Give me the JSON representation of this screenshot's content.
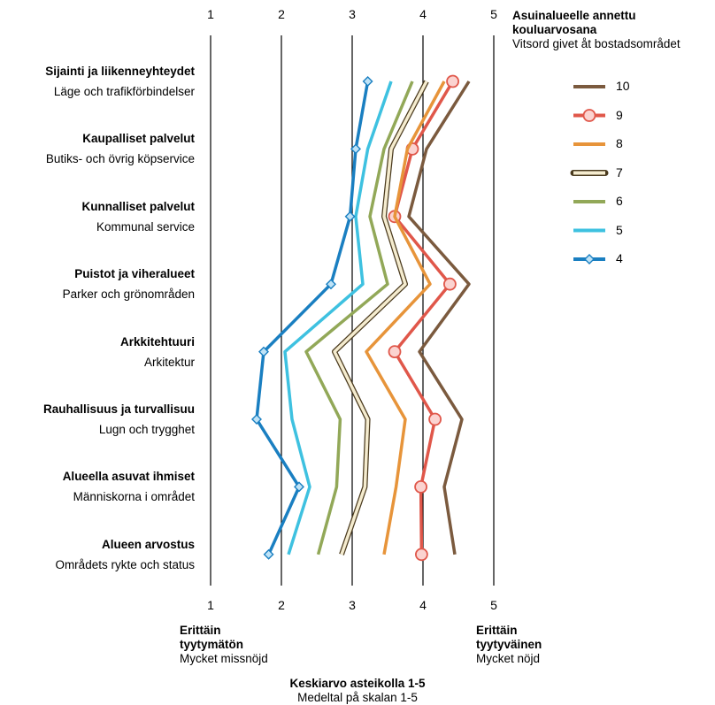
{
  "chart_data": {
    "type": "line",
    "orientation": "horizontal-values",
    "xlim": [
      1,
      5
    ],
    "x_ticks": [
      "1",
      "2",
      "3",
      "4",
      "5"
    ],
    "categories": [
      {
        "fi": "Sijainti ja liikenneyhteydet",
        "sv": "Läge och trafikförbindelser"
      },
      {
        "fi": "Kaupalliset palvelut",
        "sv": "Butiks- och övrig köpservice"
      },
      {
        "fi": "Kunnalliset palvelut",
        "sv": "Kommunal service"
      },
      {
        "fi": "Puistot ja viheralueet",
        "sv": "Parker och grönområden"
      },
      {
        "fi": "Arkkitehtuuri",
        "sv": "Arkitektur"
      },
      {
        "fi": "Rauhallisuus ja turvallisuu",
        "sv": "Lugn och trygghet"
      },
      {
        "fi": "Alueella asuvat ihmiset",
        "sv": "Människorna i området"
      },
      {
        "fi": "Alueen arvostus",
        "sv": "Områdets rykte och status"
      }
    ],
    "series": [
      {
        "name": "10",
        "color": "#7b5a3e",
        "style": "solid",
        "values": [
          4.65,
          4.05,
          3.8,
          4.65,
          3.95,
          4.55,
          4.3,
          4.45
        ]
      },
      {
        "name": "9",
        "color": "#e0574a",
        "style": "circle",
        "values": [
          4.42,
          3.85,
          3.6,
          4.38,
          3.6,
          4.17,
          3.97,
          3.98
        ]
      },
      {
        "name": "8",
        "color": "#e7943a",
        "style": "solid",
        "values": [
          4.3,
          3.78,
          3.6,
          4.1,
          3.2,
          3.75,
          3.62,
          3.45
        ]
      },
      {
        "name": "7",
        "color": "#f5eccf",
        "style": "outline",
        "values": [
          4.05,
          3.55,
          3.45,
          3.75,
          2.75,
          3.22,
          3.18,
          2.85
        ]
      },
      {
        "name": "6",
        "color": "#92a858",
        "style": "solid",
        "values": [
          3.85,
          3.45,
          3.25,
          3.5,
          2.35,
          2.83,
          2.78,
          2.52
        ]
      },
      {
        "name": "5",
        "color": "#3ec1e0",
        "style": "solid",
        "values": [
          3.55,
          3.22,
          3.05,
          3.15,
          2.05,
          2.15,
          2.4,
          2.1
        ]
      },
      {
        "name": "4",
        "color": "#1a7fc1",
        "style": "diamond",
        "values": [
          3.22,
          3.05,
          2.97,
          2.7,
          1.75,
          1.65,
          2.25,
          1.82
        ]
      }
    ],
    "legend": {
      "title_fi": "Asuinalueelle annettu kouluarvosana",
      "title_sv": "Vitsord givet åt bostadsområdet",
      "position": "top-right"
    },
    "x_axis_left_fi": "Erittäin tyytymätön",
    "x_axis_left_sv": "Mycket missnöjd",
    "x_axis_right_fi": "Erittäin tyytyväinen",
    "x_axis_right_sv": "Mycket nöjd",
    "xlabel_fi": "Keskiarvo asteikolla 1-5",
    "xlabel_sv": "Medeltal på skalan 1-5",
    "grid": "vertical"
  }
}
